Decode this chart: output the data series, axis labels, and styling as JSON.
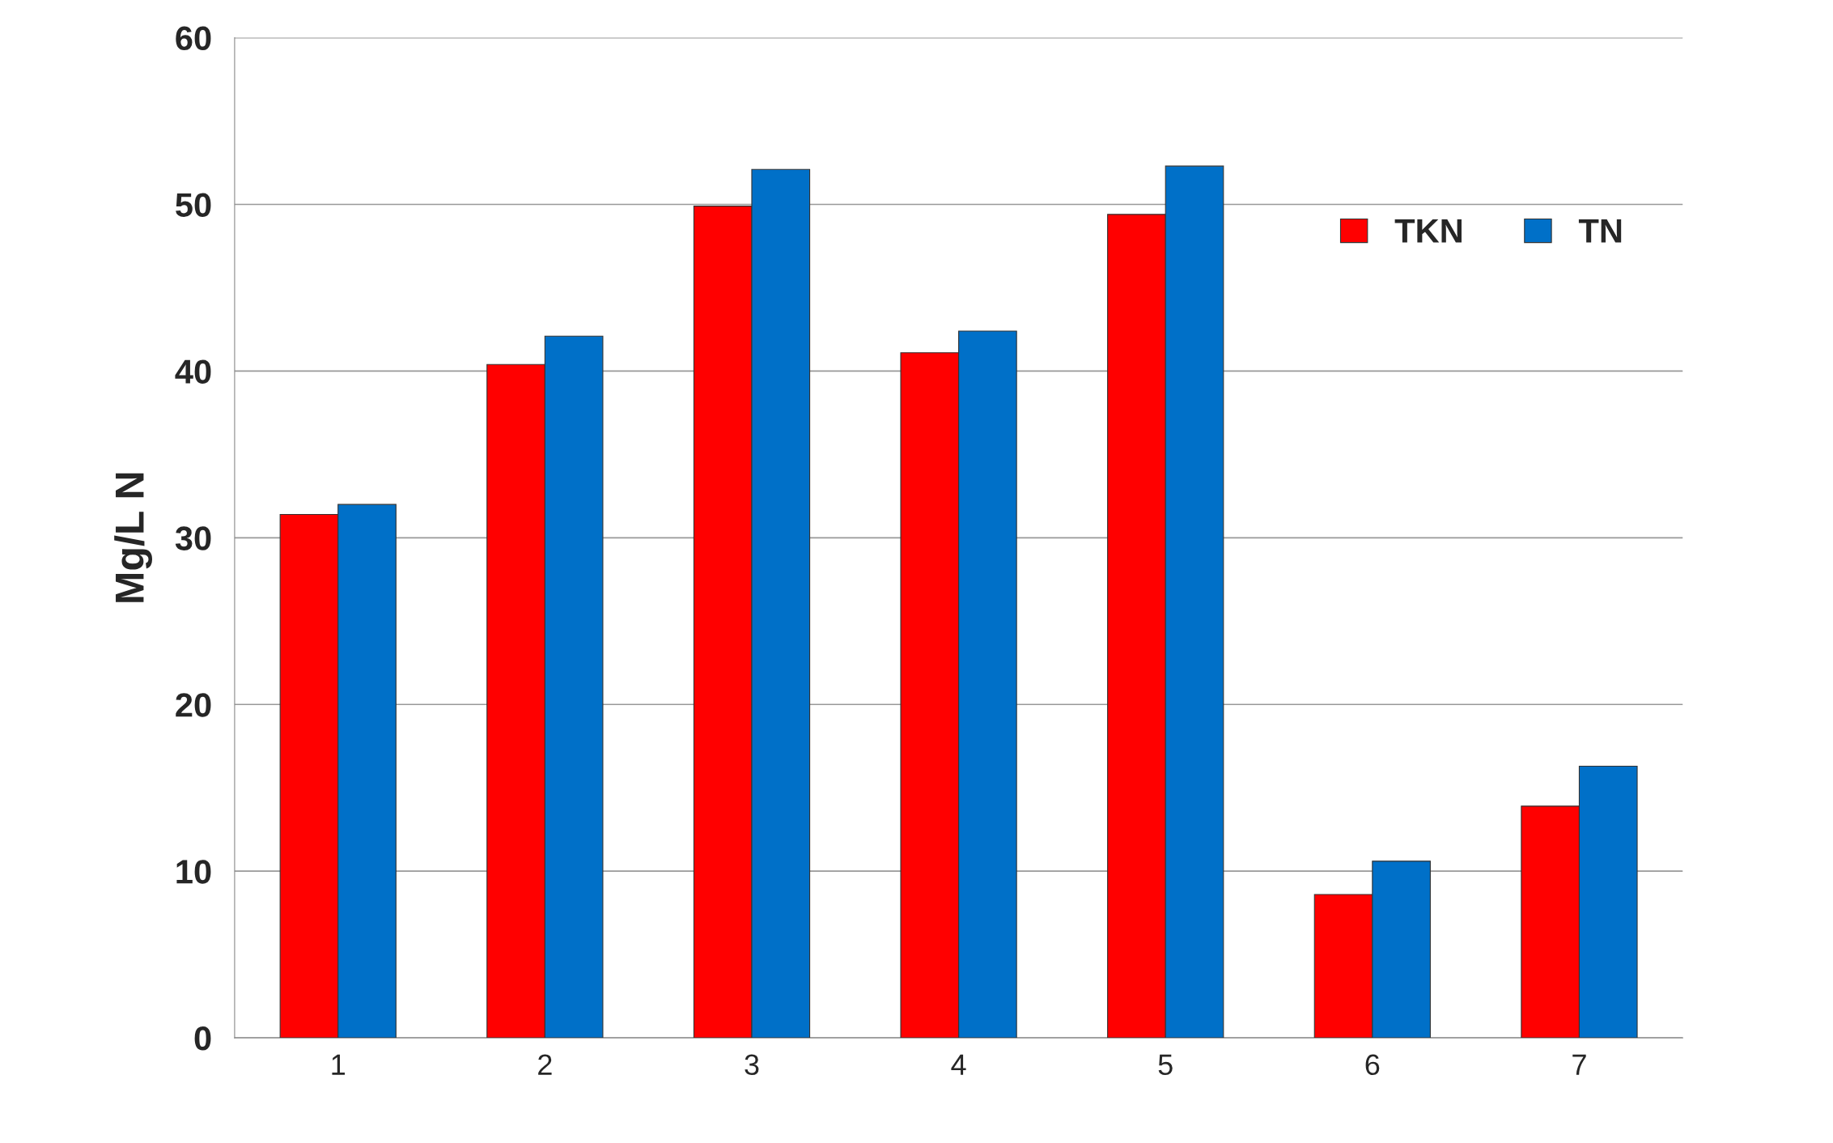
{
  "chart_data": {
    "type": "bar",
    "ylabel": "Mg/L N",
    "categories": [
      "1",
      "2",
      "3",
      "4",
      "5",
      "6",
      "7"
    ],
    "series": [
      {
        "name": "TKN",
        "color": "#ff0000",
        "values": [
          31.4,
          40.4,
          49.9,
          41.1,
          49.4,
          8.6,
          13.9
        ]
      },
      {
        "name": "TN",
        "color": "#0070c8",
        "values": [
          32.0,
          42.1,
          52.1,
          42.4,
          52.3,
          10.6,
          16.3
        ]
      }
    ],
    "ylim": [
      0,
      60
    ],
    "yticks": [
      0,
      10,
      20,
      30,
      40,
      50,
      60
    ],
    "grid": "y",
    "legend": "top right"
  }
}
